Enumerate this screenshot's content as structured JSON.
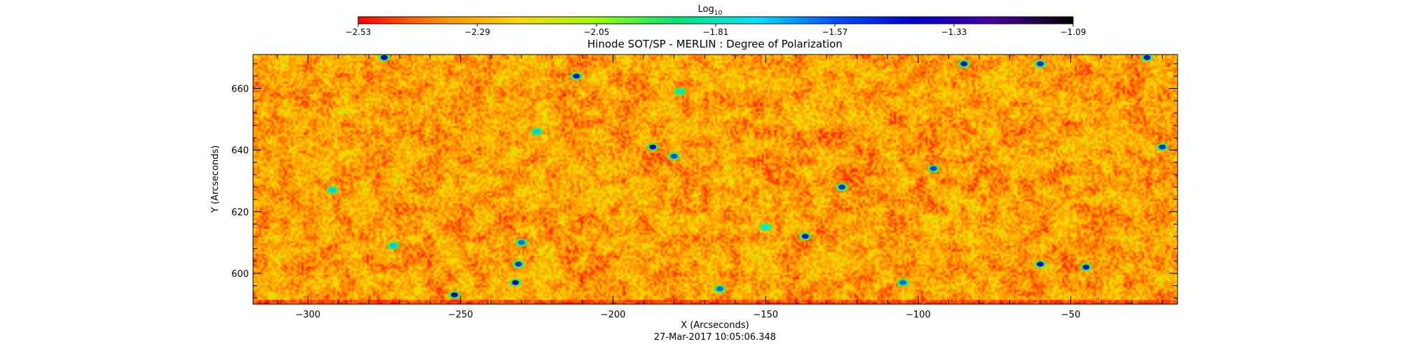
{
  "chart_data": {
    "type": "heatmap",
    "title": "Hinode SOT/SP - MERLIN : Degree of Polarization",
    "xlabel": "X (Arcseconds)",
    "ylabel": "Y (Arcseconds)",
    "timestamp": "27-Mar-2017 10:05:06.348",
    "xlim": [
      -318,
      -15
    ],
    "ylim": [
      590,
      671
    ],
    "x_ticks": [
      -300,
      -250,
      -200,
      -150,
      -100,
      -50
    ],
    "x_tick_labels": [
      "−300",
      "−250",
      "−200",
      "−150",
      "−100",
      "−50"
    ],
    "y_ticks": [
      600,
      620,
      640,
      660
    ],
    "y_tick_labels": [
      "600",
      "620",
      "640",
      "660"
    ],
    "colorbar": {
      "title": "Log",
      "title_subscript": "10",
      "range": [
        -2.53,
        -1.09
      ],
      "ticks": [
        -2.53,
        -2.29,
        -2.05,
        -1.81,
        -1.57,
        -1.33,
        -1.09
      ],
      "tick_labels": [
        "−2.53",
        "−2.29",
        "−2.05",
        "−1.81",
        "−1.57",
        "−1.33",
        "−1.09"
      ],
      "colormap": [
        "#ff0000",
        "#ff8c00",
        "#ffd700",
        "#9aff00",
        "#00e676",
        "#00e5ff",
        "#0050ff",
        "#0000cc",
        "#4a00a0",
        "#000000"
      ]
    },
    "field_color_range": [
      -2.53,
      -2.1
    ],
    "features": [
      {
        "x": -252,
        "y": 593,
        "value": -1.35
      },
      {
        "x": -232,
        "y": 597,
        "value": -1.4
      },
      {
        "x": -231,
        "y": 603,
        "value": -1.5
      },
      {
        "x": -230,
        "y": 610,
        "value": -1.6
      },
      {
        "x": -187,
        "y": 641,
        "value": -1.38
      },
      {
        "x": -180,
        "y": 638,
        "value": -1.55
      },
      {
        "x": -212,
        "y": 664,
        "value": -1.45
      },
      {
        "x": -225,
        "y": 646,
        "value": -1.7
      },
      {
        "x": -275,
        "y": 670,
        "value": -1.4
      },
      {
        "x": -137,
        "y": 612,
        "value": -1.45
      },
      {
        "x": -125,
        "y": 628,
        "value": -1.5
      },
      {
        "x": -95,
        "y": 634,
        "value": -1.55
      },
      {
        "x": -85,
        "y": 668,
        "value": -1.45
      },
      {
        "x": -60,
        "y": 603,
        "value": -1.4
      },
      {
        "x": -60,
        "y": 668,
        "value": -1.5
      },
      {
        "x": -45,
        "y": 602,
        "value": -1.45
      },
      {
        "x": -25,
        "y": 670,
        "value": -1.45
      },
      {
        "x": -20,
        "y": 641,
        "value": -1.5
      },
      {
        "x": -292,
        "y": 627,
        "value": -1.7
      },
      {
        "x": -272,
        "y": 609,
        "value": -1.7
      },
      {
        "x": -165,
        "y": 595,
        "value": -1.6
      },
      {
        "x": -105,
        "y": 597,
        "value": -1.6
      },
      {
        "x": -150,
        "y": 615,
        "value": -1.75
      },
      {
        "x": -178,
        "y": 659,
        "value": -1.8
      }
    ]
  }
}
